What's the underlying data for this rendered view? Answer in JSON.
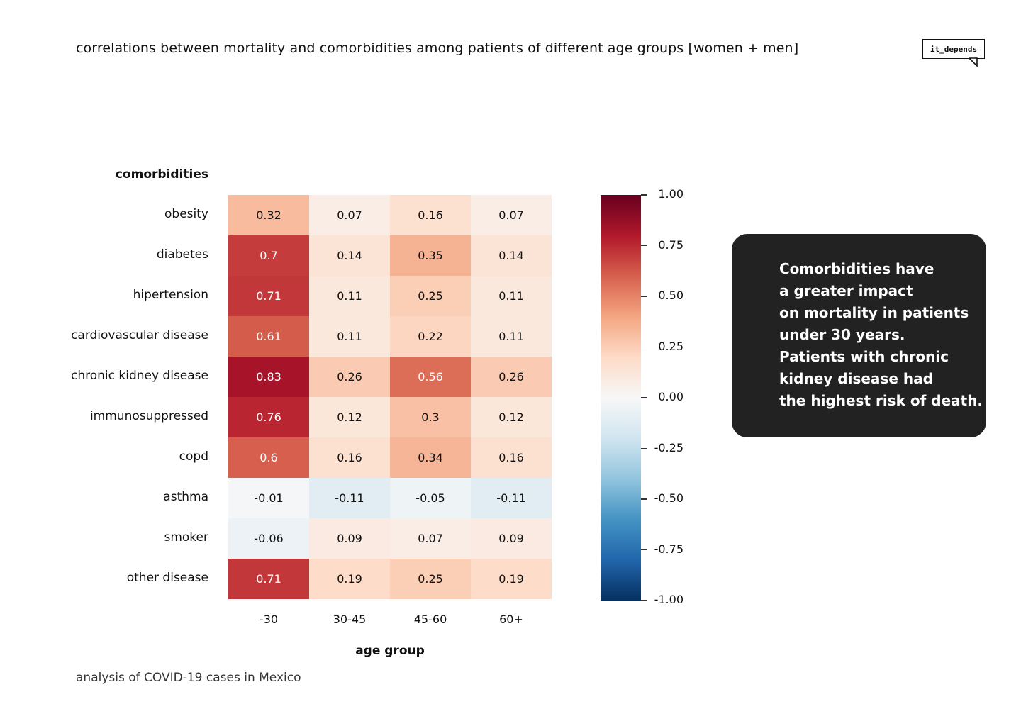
{
  "title": "correlations between mortality and comorbidities among patients of different age groups  [women + men]",
  "logo": {
    "text": "it_depends"
  },
  "footer": "analysis of COVID-19 cases in Mexico",
  "note_lines": [
    "Comorbidities have",
    "a greater impact",
    "on mortality in patients",
    "under 30 years.",
    "Patients with chronic",
    "kidney disease had",
    "the highest risk of death."
  ],
  "colorbar": {
    "labels": [
      "1.00",
      "0.75",
      "0.50",
      "0.25",
      "0.00",
      "-0.25",
      "-0.50",
      "-0.75",
      "-1.00"
    ],
    "values": [
      1.0,
      0.75,
      0.5,
      0.25,
      0.0,
      -0.25,
      -0.5,
      -0.75,
      -1.0
    ],
    "colors": {
      "max": "#67001f",
      "high": "#b2182b",
      "midhigh": "#d6604d",
      "lowhigh": "#f4a582",
      "light": "#fddbc7",
      "zero": "#f7f7f7",
      "lightneg": "#d1e5f0",
      "lowneg": "#92c5de",
      "midneg": "#4393c3",
      "highneg": "#2166ac",
      "min": "#053061"
    }
  },
  "chart_data": {
    "type": "heatmap",
    "title": "correlations between mortality and comorbidities among patients of different age groups  [women + men]",
    "xlabel": "age group",
    "ylabel": "comorbidities",
    "x_categories": [
      "-30",
      "30-45",
      "45-60",
      "60+"
    ],
    "y_categories": [
      "obesity",
      "diabetes",
      "hipertension",
      "cardiovascular disease",
      "chronic kidney disease",
      "immunosuppressed",
      "copd",
      "asthma",
      "smoker",
      "other disease"
    ],
    "values": [
      [
        0.32,
        0.07,
        0.16,
        0.07
      ],
      [
        0.7,
        0.14,
        0.35,
        0.14
      ],
      [
        0.71,
        0.11,
        0.25,
        0.11
      ],
      [
        0.61,
        0.11,
        0.22,
        0.11
      ],
      [
        0.83,
        0.26,
        0.56,
        0.26
      ],
      [
        0.76,
        0.12,
        0.3,
        0.12
      ],
      [
        0.6,
        0.16,
        0.34,
        0.16
      ],
      [
        -0.01,
        -0.11,
        -0.05,
        -0.11
      ],
      [
        -0.06,
        0.09,
        0.07,
        0.09
      ],
      [
        0.71,
        0.19,
        0.25,
        0.19
      ]
    ],
    "value_labels": [
      [
        "0.32",
        "0.07",
        "0.16",
        "0.07"
      ],
      [
        "0.7",
        "0.14",
        "0.35",
        "0.14"
      ],
      [
        "0.71",
        "0.11",
        "0.25",
        "0.11"
      ],
      [
        "0.61",
        "0.11",
        "0.22",
        "0.11"
      ],
      [
        "0.83",
        "0.26",
        "0.56",
        "0.26"
      ],
      [
        "0.76",
        "0.12",
        "0.3",
        "0.12"
      ],
      [
        "0.6",
        "0.16",
        "0.34",
        "0.16"
      ],
      [
        "-0.01",
        "-0.11",
        "-0.05",
        "-0.11"
      ],
      [
        "-0.06",
        "0.09",
        "0.07",
        "0.09"
      ],
      [
        "0.71",
        "0.19",
        "0.25",
        "0.19"
      ]
    ],
    "color_range": [
      -1.0,
      1.0
    ],
    "colormap": "RdBu_r"
  }
}
